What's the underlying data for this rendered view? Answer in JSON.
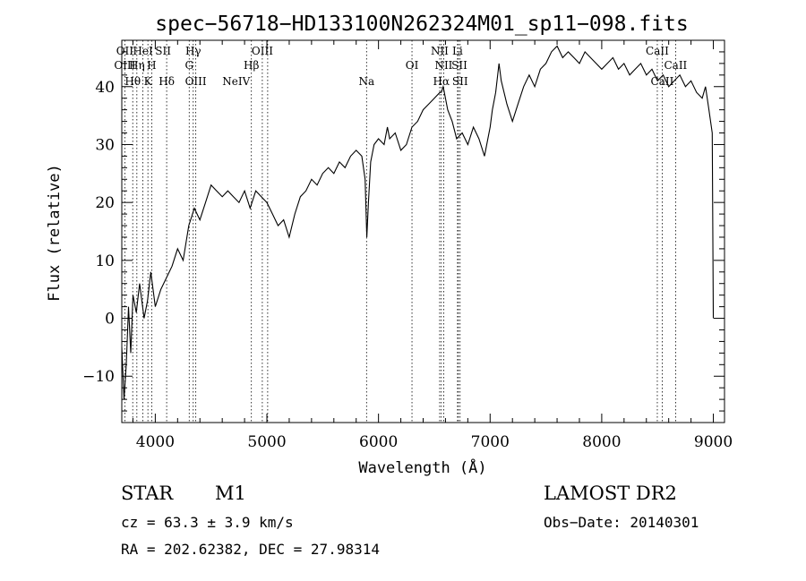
{
  "chart_data": {
    "type": "line",
    "title": "spec−56718−HD133100N262324M01_sp11−098.fits",
    "xlabel": "Wavelength (Å)",
    "ylabel": "Flux (relative)",
    "xlim": [
      3700,
      9100
    ],
    "ylim": [
      -18,
      48
    ],
    "x_ticks": [
      "4000",
      "5000",
      "6000",
      "7000",
      "8000",
      "9000"
    ],
    "x_tick_values": [
      4000,
      5000,
      6000,
      7000,
      8000,
      9000
    ],
    "y_ticks": [
      "−10",
      "0",
      "10",
      "20",
      "30",
      "40"
    ],
    "y_tick_values": [
      -10,
      0,
      10,
      20,
      30,
      40
    ],
    "series": [
      {
        "x": [
          3700,
          3720,
          3740,
          3760,
          3780,
          3800,
          3830,
          3860,
          3900,
          3930,
          3960,
          4000,
          4050,
          4100,
          4150,
          4200,
          4250,
          4300,
          4350,
          4400,
          4450,
          4500,
          4550,
          4600,
          4650,
          4700,
          4750,
          4800,
          4850,
          4900,
          4950,
          5000,
          5050,
          5100,
          5150,
          5200,
          5250,
          5300,
          5350,
          5400,
          5450,
          5500,
          5550,
          5600,
          5650,
          5700,
          5750,
          5800,
          5850,
          5880,
          5895,
          5910,
          5930,
          5960,
          6000,
          6050,
          6080,
          6100,
          6150,
          6200,
          6250,
          6300,
          6350,
          6400,
          6450,
          6500,
          6550,
          6563,
          6580,
          6620,
          6660,
          6700,
          6750,
          6800,
          6850,
          6900,
          6950,
          7000,
          7020,
          7050,
          7080,
          7100,
          7150,
          7200,
          7250,
          7300,
          7350,
          7400,
          7450,
          7500,
          7550,
          7600,
          7650,
          7700,
          7750,
          7800,
          7850,
          7900,
          7950,
          8000,
          8050,
          8100,
          8150,
          8200,
          8250,
          8300,
          8350,
          8400,
          8450,
          8500,
          8550,
          8600,
          8650,
          8700,
          8750,
          8800,
          8850,
          8900,
          8930,
          8960,
          8990,
          9000
        ],
        "y": [
          -5,
          -14,
          -8,
          2,
          -6,
          4,
          1,
          6,
          0,
          3,
          8,
          2,
          5,
          7,
          9,
          12,
          10,
          16,
          19,
          17,
          20,
          23,
          22,
          21,
          22,
          21,
          20,
          22,
          19,
          22,
          21,
          20,
          18,
          16,
          17,
          14,
          18,
          21,
          22,
          24,
          23,
          25,
          26,
          25,
          27,
          26,
          28,
          29,
          28,
          24,
          14,
          20,
          27,
          30,
          31,
          30,
          33,
          31,
          32,
          29,
          30,
          33,
          34,
          36,
          37,
          38,
          39,
          39,
          40,
          36,
          34,
          31,
          32,
          30,
          33,
          31,
          28,
          33,
          36,
          39,
          44,
          41,
          37,
          34,
          37,
          40,
          42,
          40,
          43,
          44,
          46,
          47,
          45,
          46,
          45,
          44,
          46,
          45,
          44,
          43,
          44,
          45,
          43,
          44,
          42,
          43,
          44,
          42,
          43,
          41,
          42,
          40,
          41,
          42,
          40,
          41,
          39,
          38,
          40,
          36,
          32,
          0
        ]
      }
    ],
    "line_markers": [
      {
        "label": "OII",
        "x": 3727,
        "row": 0
      },
      {
        "label": "HeI",
        "x": 3889,
        "row": 0
      },
      {
        "label": "SII",
        "x": 4070,
        "row": 0
      },
      {
        "label": "Hγ",
        "x": 4340,
        "row": 0
      },
      {
        "label": "OIII",
        "x": 4959,
        "row": 0
      },
      {
        "label": "NII",
        "x": 6548,
        "row": 0
      },
      {
        "label": "Li",
        "x": 6708,
        "row": 0
      },
      {
        "label": "CaII",
        "x": 8498,
        "row": 0
      },
      {
        "label": "OIII",
        "x": 3727,
        "row": 1
      },
      {
        "label": "Hη",
        "x": 3835,
        "row": 1
      },
      {
        "label": "H",
        "x": 3968,
        "row": 1
      },
      {
        "label": "G",
        "x": 4304,
        "row": 1
      },
      {
        "label": "Hβ",
        "x": 4861,
        "row": 1
      },
      {
        "label": "OI",
        "x": 6300,
        "row": 1
      },
      {
        "label": "NII",
        "x": 6584,
        "row": 1
      },
      {
        "label": "SII",
        "x": 6725,
        "row": 1
      },
      {
        "label": "CaII",
        "x": 8662,
        "row": 1
      },
      {
        "label": "Hθ",
        "x": 3798,
        "row": 2
      },
      {
        "label": "K",
        "x": 3934,
        "row": 2
      },
      {
        "label": "Hδ",
        "x": 4102,
        "row": 2
      },
      {
        "label": "OIII",
        "x": 4363,
        "row": 2
      },
      {
        "label": "NeIV",
        "x": 4725,
        "row": 2
      },
      {
        "label": "Na",
        "x": 5893,
        "row": 2
      },
      {
        "label": "Hα",
        "x": 6563,
        "row": 2
      },
      {
        "label": "SII",
        "x": 6731,
        "row": 2
      },
      {
        "label": "CaII",
        "x": 8542,
        "row": 2
      }
    ],
    "line_positions": [
      3727,
      3798,
      3835,
      3889,
      3934,
      3968,
      4102,
      4304,
      4340,
      4363,
      4861,
      4959,
      5007,
      5893,
      6300,
      6548,
      6563,
      6584,
      6708,
      6716,
      6731,
      8498,
      8542,
      8662
    ]
  },
  "info": {
    "object_class": "STAR",
    "subclass": "M1",
    "survey": "LAMOST DR2",
    "cz": "cz = 63.3 ± 3.9 km/s",
    "obs_date": "Obs−Date: 20140301",
    "coords": "RA = 202.62382, DEC =  27.98314"
  }
}
